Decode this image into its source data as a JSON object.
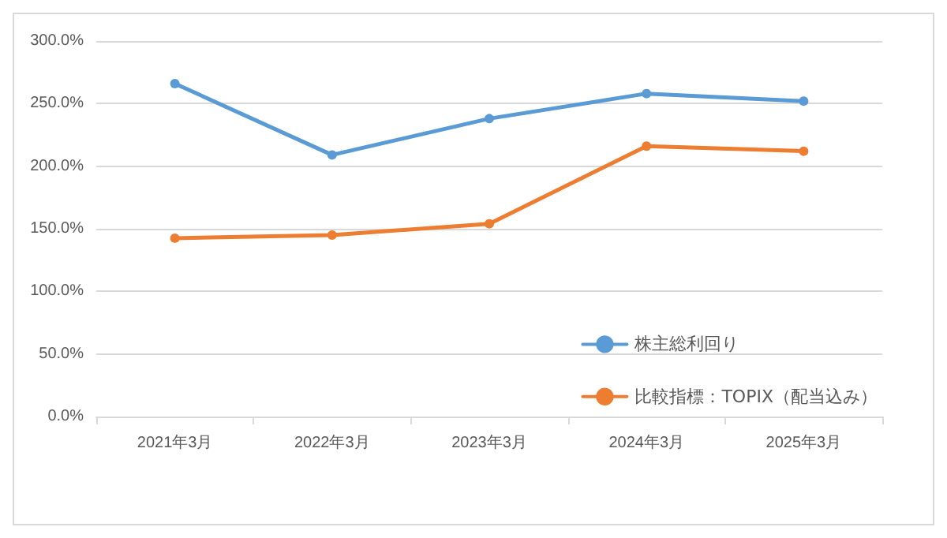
{
  "chart_data": {
    "type": "line",
    "categories": [
      "2021年3月",
      "2022年3月",
      "2023年3月",
      "2024年3月",
      "2025年3月"
    ],
    "series": [
      {
        "name": "株主総利回り",
        "color": "#5b9bd5",
        "values": [
          266,
          209,
          238,
          258,
          252
        ]
      },
      {
        "name": "比較指標：TOPIX（配当込み）",
        "color": "#ed7d31",
        "values": [
          142.5,
          145,
          154,
          216,
          212
        ]
      }
    ],
    "ylim": [
      0,
      300
    ],
    "yticks": [
      {
        "value": 0,
        "label": "0.0%"
      },
      {
        "value": 50,
        "label": "50.0%"
      },
      {
        "value": 100,
        "label": "100.0%"
      },
      {
        "value": 150,
        "label": "150.0%"
      },
      {
        "value": 200,
        "label": "200.0%"
      },
      {
        "value": 250,
        "label": "250.0%"
      },
      {
        "value": 300,
        "label": "300.0%"
      }
    ],
    "grid": "y",
    "legend": "bottom right",
    "marker": "circle",
    "line_style": "solid"
  }
}
